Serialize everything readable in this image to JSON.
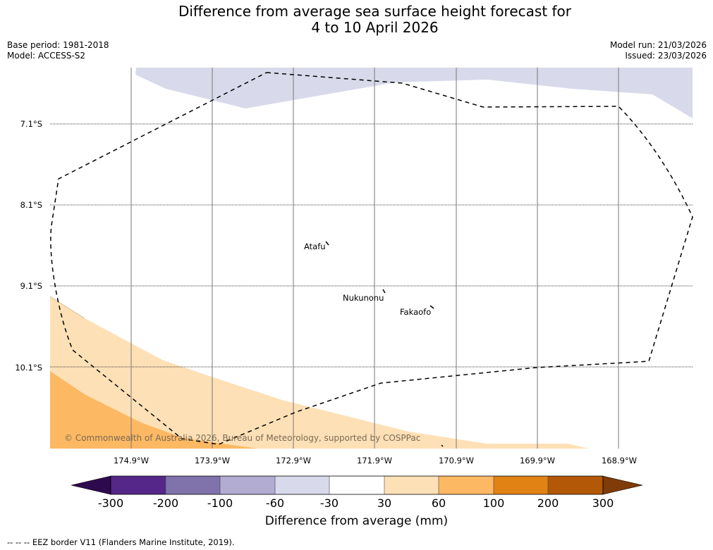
{
  "title": {
    "line1": "Difference from average sea surface height forecast for",
    "line2": "4 to 10 April 2026"
  },
  "meta": {
    "base_period": "Base period: 1981-2018",
    "model": "Model: ACCESS-S2",
    "model_run": "Model run: 21/03/2026",
    "issued": "Issued: 23/03/2026"
  },
  "map": {
    "latitudes": [
      "7.1°S",
      "8.1°S",
      "9.1°S",
      "10.1°S"
    ],
    "longitudes": [
      "174.9°W",
      "173.9°W",
      "172.9°W",
      "171.9°W",
      "170.9°W",
      "169.9°W",
      "168.9°W"
    ],
    "places": [
      "Atafu",
      "Nukunonu",
      "Fakaofo"
    ],
    "copyright": "© Commonwealth of Australia 2026, Bureau of Meteorology, supported by COSPPac"
  },
  "colorbar": {
    "label": "Difference from average (mm)",
    "ticks": [
      "-300",
      "-200",
      "-100",
      "-60",
      "-30",
      "30",
      "60",
      "100",
      "200",
      "300"
    ],
    "colors": [
      "#2d0a4e",
      "#542788",
      "#8073ac",
      "#b2abd2",
      "#d8daeb",
      "#ffffff",
      "#fee0b6",
      "#fdb863",
      "#e08214",
      "#b35806",
      "#7f3b08"
    ]
  },
  "legend": {
    "text": "--  --  -- EEZ border V11 (Flanders Marine Institute, 2019)."
  }
}
